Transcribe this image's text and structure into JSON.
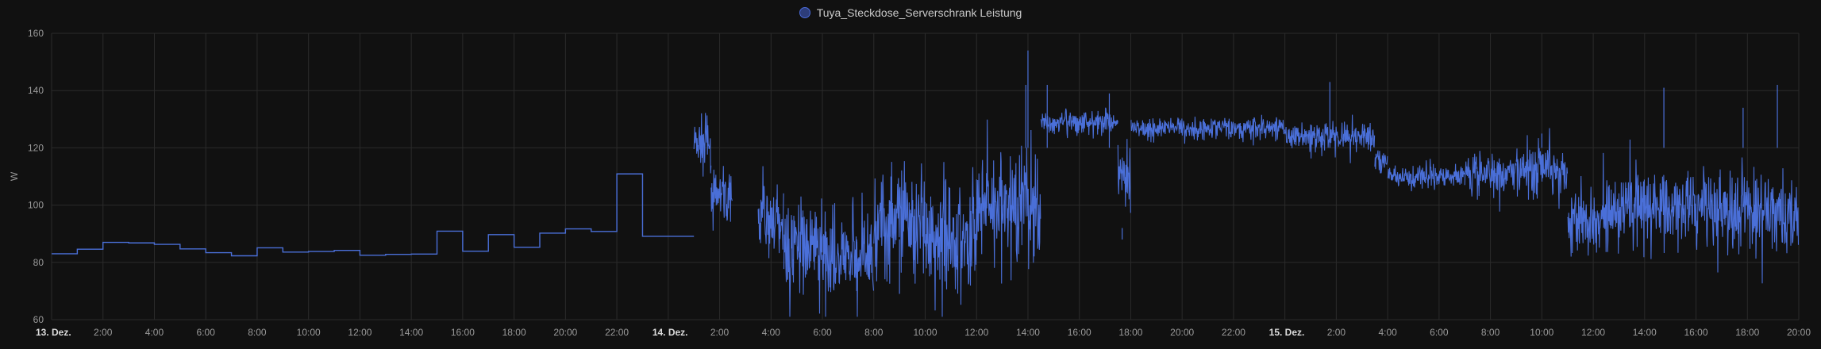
{
  "chart_data": {
    "type": "line",
    "title": "",
    "xlabel": "",
    "ylabel": "W",
    "ylim": [
      60,
      160
    ],
    "yticks": [
      "60",
      "80",
      "100",
      "120",
      "140",
      "160"
    ],
    "xlim": [
      "2023-12-13T00:00",
      "2023-12-15T20:00"
    ],
    "xtick_labels": [
      "13. Dez.",
      "2:00",
      "4:00",
      "6:00",
      "8:00",
      "10:00",
      "12:00",
      "14:00",
      "16:00",
      "18:00",
      "20:00",
      "22:00",
      "14. Dez.",
      "2:00",
      "4:00",
      "6:00",
      "8:00",
      "10:00",
      "12:00",
      "14:00",
      "16:00",
      "18:00",
      "20:00",
      "22:00",
      "15. Dez.",
      "2:00",
      "4:00",
      "6:00",
      "8:00",
      "10:00",
      "12:00",
      "14:00",
      "16:00",
      "18:00",
      "20:00"
    ],
    "grid": true,
    "legend_position": "top-center",
    "series": [
      {
        "name": "Tuya_Steckdose_Serverschrank Leistung",
        "color": "#4a6fd8",
        "step_points": [
          {
            "x": "2023-12-13T00:00",
            "y": 83.0
          },
          {
            "x": "2023-12-13T01:00",
            "y": 84.6
          },
          {
            "x": "2023-12-13T02:00",
            "y": 87.0
          },
          {
            "x": "2023-12-13T03:00",
            "y": 86.8
          },
          {
            "x": "2023-12-13T04:00",
            "y": 86.3
          },
          {
            "x": "2023-12-13T05:00",
            "y": 84.7
          },
          {
            "x": "2023-12-13T06:00",
            "y": 83.4
          },
          {
            "x": "2023-12-13T07:00",
            "y": 82.3
          },
          {
            "x": "2023-12-13T08:00",
            "y": 85.1
          },
          {
            "x": "2023-12-13T09:00",
            "y": 83.6
          },
          {
            "x": "2023-12-13T10:00",
            "y": 83.8
          },
          {
            "x": "2023-12-13T11:00",
            "y": 84.2
          },
          {
            "x": "2023-12-13T12:00",
            "y": 82.5
          },
          {
            "x": "2023-12-13T13:00",
            "y": 82.8
          },
          {
            "x": "2023-12-13T14:00",
            "y": 82.9
          },
          {
            "x": "2023-12-13T15:00",
            "y": 90.9
          },
          {
            "x": "2023-12-13T16:00",
            "y": 83.9
          },
          {
            "x": "2023-12-13T17:00",
            "y": 89.7
          },
          {
            "x": "2023-12-13T18:00",
            "y": 85.3
          },
          {
            "x": "2023-12-13T19:00",
            "y": 90.2
          },
          {
            "x": "2023-12-13T20:00",
            "y": 91.7
          },
          {
            "x": "2023-12-13T21:00",
            "y": 90.8
          },
          {
            "x": "2023-12-13T22:00",
            "y": 110.9
          },
          {
            "x": "2023-12-13T23:00",
            "y": 89.1
          },
          {
            "x": "2023-12-14T01:00",
            "y": 89.1
          }
        ],
        "noisy_segments": [
          {
            "start": "2023-12-14T01:00",
            "end": "2023-12-14T01:40",
            "base": 122,
            "noise": 6
          },
          {
            "start": "2023-12-14T01:40",
            "end": "2023-12-14T02:30",
            "base": 103,
            "noise": 6
          },
          {
            "start": "2023-12-14T03:30",
            "end": "2023-12-14T04:30",
            "base": 95,
            "noise": 8
          },
          {
            "start": "2023-12-14T04:30",
            "end": "2023-12-14T06:00",
            "base": 85,
            "noise": 10
          },
          {
            "start": "2023-12-14T06:00",
            "end": "2023-12-14T08:00",
            "base": 82,
            "noise": 10
          },
          {
            "start": "2023-12-14T08:00",
            "end": "2023-12-14T10:00",
            "base": 95,
            "noise": 12
          },
          {
            "start": "2023-12-14T10:00",
            "end": "2023-12-14T12:00",
            "base": 90,
            "noise": 12
          },
          {
            "start": "2023-12-14T12:00",
            "end": "2023-12-14T13:30",
            "base": 100,
            "noise": 12
          },
          {
            "start": "2023-12-14T13:30",
            "end": "2023-12-14T14:30",
            "base": 100,
            "noise": 12
          },
          {
            "start": "2023-12-14T14:30",
            "end": "2023-12-14T17:30",
            "base": 129,
            "noise": 2.5
          },
          {
            "start": "2023-12-14T17:30",
            "end": "2023-12-14T18:00",
            "base": 110,
            "noise": 8
          },
          {
            "start": "2023-12-14T18:00",
            "end": "2023-12-15T00:00",
            "base": 127,
            "noise": 2.5
          },
          {
            "start": "2023-12-15T00:00",
            "end": "2023-12-15T03:30",
            "base": 124,
            "noise": 3
          },
          {
            "start": "2023-12-15T03:30",
            "end": "2023-12-15T04:00",
            "base": 116,
            "noise": 3
          },
          {
            "start": "2023-12-15T04:00",
            "end": "2023-12-15T07:00",
            "base": 110,
            "noise": 2.5
          },
          {
            "start": "2023-12-15T07:00",
            "end": "2023-12-15T09:00",
            "base": 111,
            "noise": 5
          },
          {
            "start": "2023-12-15T09:00",
            "end": "2023-12-15T11:00",
            "base": 113,
            "noise": 6
          },
          {
            "start": "2023-12-15T11:00",
            "end": "2023-12-15T13:00",
            "base": 95,
            "noise": 8
          },
          {
            "start": "2023-12-15T13:00",
            "end": "2023-12-15T16:00",
            "base": 100,
            "noise": 9
          },
          {
            "start": "2023-12-15T16:00",
            "end": "2023-12-15T20:00",
            "base": 98,
            "noise": 9
          }
        ],
        "spikes": [
          {
            "x": "2023-12-14T14:00",
            "y": 154
          },
          {
            "x": "2023-12-14T13:55",
            "y": 142
          },
          {
            "x": "2023-12-14T14:45",
            "y": 142
          },
          {
            "x": "2023-12-14T17:10",
            "y": 139
          },
          {
            "x": "2023-12-14T17:40",
            "y": 92
          },
          {
            "x": "2023-12-15T01:45",
            "y": 143
          },
          {
            "x": "2023-12-15T10:00",
            "y": 125
          },
          {
            "x": "2023-12-15T14:45",
            "y": 141
          },
          {
            "x": "2023-12-15T17:50",
            "y": 134
          },
          {
            "x": "2023-12-15T19:10",
            "y": 142
          },
          {
            "x": "2023-12-14T07:20",
            "y": 70
          },
          {
            "x": "2023-12-14T09:00",
            "y": 69
          }
        ]
      }
    ]
  }
}
